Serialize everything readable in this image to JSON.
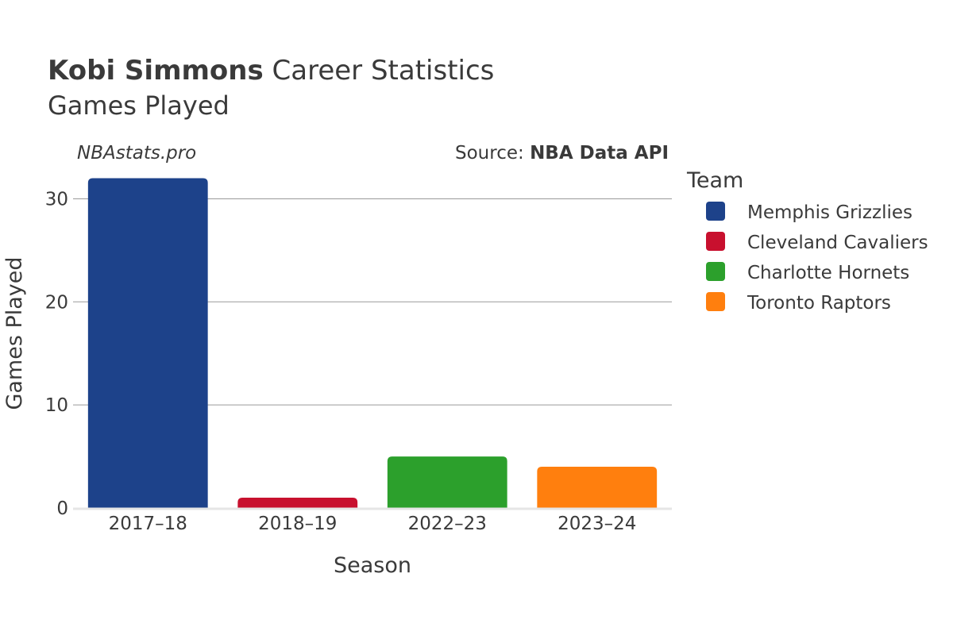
{
  "header": {
    "player_name": "Kobi Simmons",
    "title_suffix": " Career Statistics",
    "subtitle": "Games Played"
  },
  "watermark": "NBAstats.pro",
  "source": {
    "prefix": "Source: ",
    "name": "NBA Data API"
  },
  "legend": {
    "title": "Team",
    "items": [
      {
        "label": "Memphis Grizzlies",
        "color": "#1d428a"
      },
      {
        "label": "Cleveland Cavaliers",
        "color": "#c8102e"
      },
      {
        "label": "Charlotte Hornets",
        "color": "#2ca02c"
      },
      {
        "label": "Toronto Raptors",
        "color": "#ff7f0e"
      }
    ]
  },
  "chart_data": {
    "type": "bar",
    "categories": [
      "2017–18",
      "2018–19",
      "2022–23",
      "2023–24"
    ],
    "values": [
      32,
      1,
      5,
      4
    ],
    "colors": [
      "#1d428a",
      "#c8102e",
      "#2ca02c",
      "#ff7f0e"
    ],
    "teams": [
      "Memphis Grizzlies",
      "Cleveland Cavaliers",
      "Charlotte Hornets",
      "Toronto Raptors"
    ],
    "xlabel": "Season",
    "ylabel": "Games Played",
    "ylim": [
      0,
      33.5
    ],
    "yticks": [
      0,
      10,
      20,
      30
    ],
    "grid": true,
    "legend_position": "right"
  }
}
